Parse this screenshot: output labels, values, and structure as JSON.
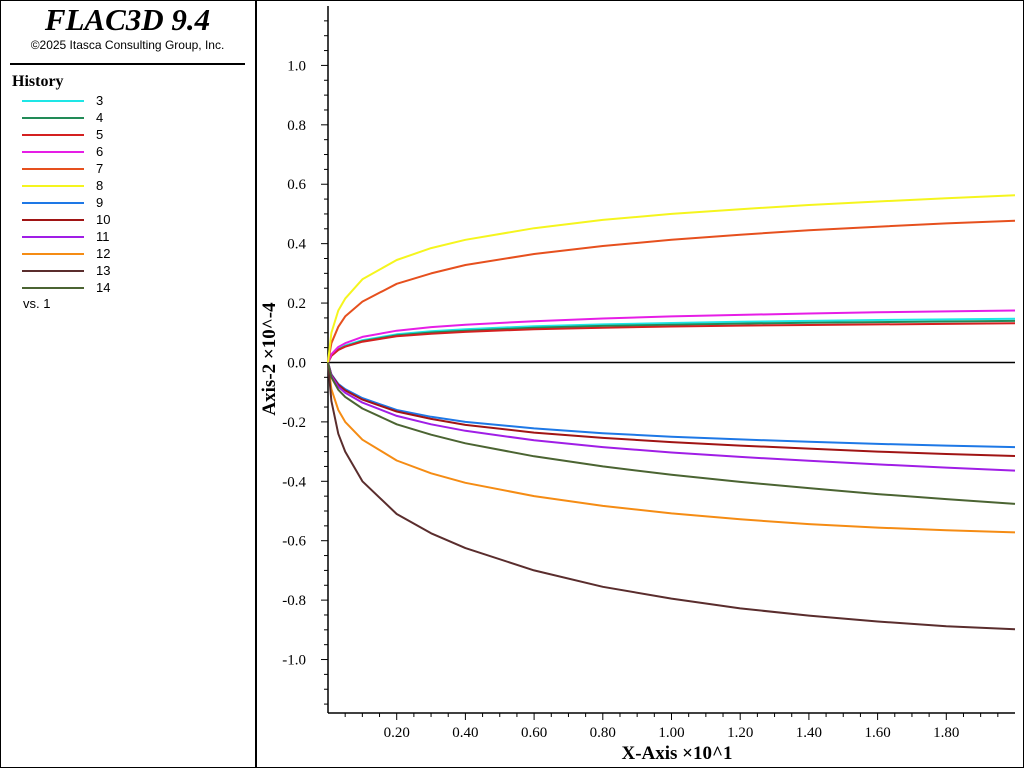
{
  "header": {
    "title": "FLAC3D 9.4",
    "copyright": "©2025 Itasca Consulting Group, Inc."
  },
  "legend": {
    "title": "History",
    "items": [
      {
        "label": "3",
        "color": "#1ee6e6"
      },
      {
        "label": "4",
        "color": "#228b57"
      },
      {
        "label": "5",
        "color": "#d42020"
      },
      {
        "label": "6",
        "color": "#e61ee6"
      },
      {
        "label": "7",
        "color": "#e6501e"
      },
      {
        "label": "8",
        "color": "#f5f51e"
      },
      {
        "label": "9",
        "color": "#1e78e6"
      },
      {
        "label": "10",
        "color": "#a01414"
      },
      {
        "label": "11",
        "color": "#a01ee6"
      },
      {
        "label": "12",
        "color": "#f58c14"
      },
      {
        "label": "13",
        "color": "#5a2d2d"
      },
      {
        "label": "14",
        "color": "#4b6432"
      }
    ],
    "vs_label": "vs. 1"
  },
  "chart_data": {
    "type": "line",
    "xlabel": "X-Axis ×10^1",
    "ylabel": "Axis-2 ×10^-4",
    "xlim": [
      0,
      2.0
    ],
    "ylim": [
      -1.18,
      1.2
    ],
    "xticks": [
      "0.20",
      "0.40",
      "0.60",
      "0.80",
      "1.00",
      "1.20",
      "1.40",
      "1.60",
      "1.80"
    ],
    "yticks": [
      "1.0",
      "0.8",
      "0.6",
      "0.4",
      "0.2",
      "0.0",
      "-0.2",
      "-0.4",
      "-0.6",
      "-0.8",
      "-1.0"
    ],
    "x": [
      0.0,
      0.01,
      0.03,
      0.05,
      0.1,
      0.2,
      0.3,
      0.4,
      0.6,
      0.8,
      1.0,
      1.2,
      1.4,
      1.6,
      1.8,
      2.0
    ],
    "series": [
      {
        "name": "3",
        "color": "#1ee6e6",
        "values": [
          0,
          0.025,
          0.045,
          0.057,
          0.075,
          0.095,
          0.105,
          0.112,
          0.122,
          0.128,
          0.133,
          0.137,
          0.14,
          0.143,
          0.145,
          0.147
        ]
      },
      {
        "name": "4",
        "color": "#228b57",
        "values": [
          0,
          0.023,
          0.043,
          0.054,
          0.072,
          0.091,
          0.101,
          0.107,
          0.117,
          0.123,
          0.127,
          0.131,
          0.134,
          0.136,
          0.138,
          0.14
        ]
      },
      {
        "name": "5",
        "color": "#d42020",
        "values": [
          0,
          0.022,
          0.042,
          0.053,
          0.07,
          0.088,
          0.097,
          0.103,
          0.112,
          0.117,
          0.121,
          0.124,
          0.126,
          0.128,
          0.13,
          0.132
        ]
      },
      {
        "name": "6",
        "color": "#e61ee6",
        "values": [
          0,
          0.028,
          0.052,
          0.065,
          0.086,
          0.107,
          0.119,
          0.127,
          0.139,
          0.148,
          0.155,
          0.16,
          0.165,
          0.169,
          0.172,
          0.175
        ]
      },
      {
        "name": "7",
        "color": "#e6501e",
        "values": [
          0,
          0.065,
          0.12,
          0.155,
          0.205,
          0.265,
          0.3,
          0.328,
          0.365,
          0.392,
          0.413,
          0.43,
          0.445,
          0.457,
          0.468,
          0.477
        ]
      },
      {
        "name": "8",
        "color": "#f5f51e",
        "values": [
          0,
          0.1,
          0.175,
          0.215,
          0.28,
          0.345,
          0.385,
          0.413,
          0.452,
          0.48,
          0.5,
          0.516,
          0.53,
          0.542,
          0.553,
          0.563
        ]
      },
      {
        "name": "9",
        "color": "#1e78e6",
        "values": [
          0,
          -0.04,
          -0.072,
          -0.09,
          -0.12,
          -0.16,
          -0.183,
          -0.2,
          -0.222,
          -0.238,
          -0.25,
          -0.259,
          -0.267,
          -0.274,
          -0.28,
          -0.285
        ]
      },
      {
        "name": "10",
        "color": "#a01414",
        "values": [
          0,
          -0.042,
          -0.075,
          -0.094,
          -0.125,
          -0.165,
          -0.19,
          -0.21,
          -0.236,
          -0.254,
          -0.268,
          -0.28,
          -0.29,
          -0.3,
          -0.308,
          -0.315
        ]
      },
      {
        "name": "11",
        "color": "#a01ee6",
        "values": [
          0,
          -0.045,
          -0.082,
          -0.102,
          -0.135,
          -0.18,
          -0.208,
          -0.23,
          -0.262,
          -0.285,
          -0.303,
          -0.318,
          -0.331,
          -0.343,
          -0.354,
          -0.364
        ]
      },
      {
        "name": "12",
        "color": "#f58c14",
        "values": [
          0,
          -0.09,
          -0.16,
          -0.2,
          -0.26,
          -0.33,
          -0.373,
          -0.405,
          -0.45,
          -0.483,
          -0.508,
          -0.528,
          -0.544,
          -0.556,
          -0.565,
          -0.572
        ]
      },
      {
        "name": "13",
        "color": "#5a2d2d",
        "values": [
          0,
          -0.13,
          -0.24,
          -0.3,
          -0.4,
          -0.51,
          -0.575,
          -0.625,
          -0.7,
          -0.755,
          -0.795,
          -0.828,
          -0.852,
          -0.872,
          -0.888,
          -0.898
        ]
      },
      {
        "name": "14",
        "color": "#4b6432",
        "values": [
          0,
          -0.05,
          -0.092,
          -0.116,
          -0.155,
          -0.208,
          -0.243,
          -0.272,
          -0.316,
          -0.35,
          -0.378,
          -0.402,
          -0.423,
          -0.443,
          -0.46,
          -0.476
        ]
      }
    ]
  }
}
